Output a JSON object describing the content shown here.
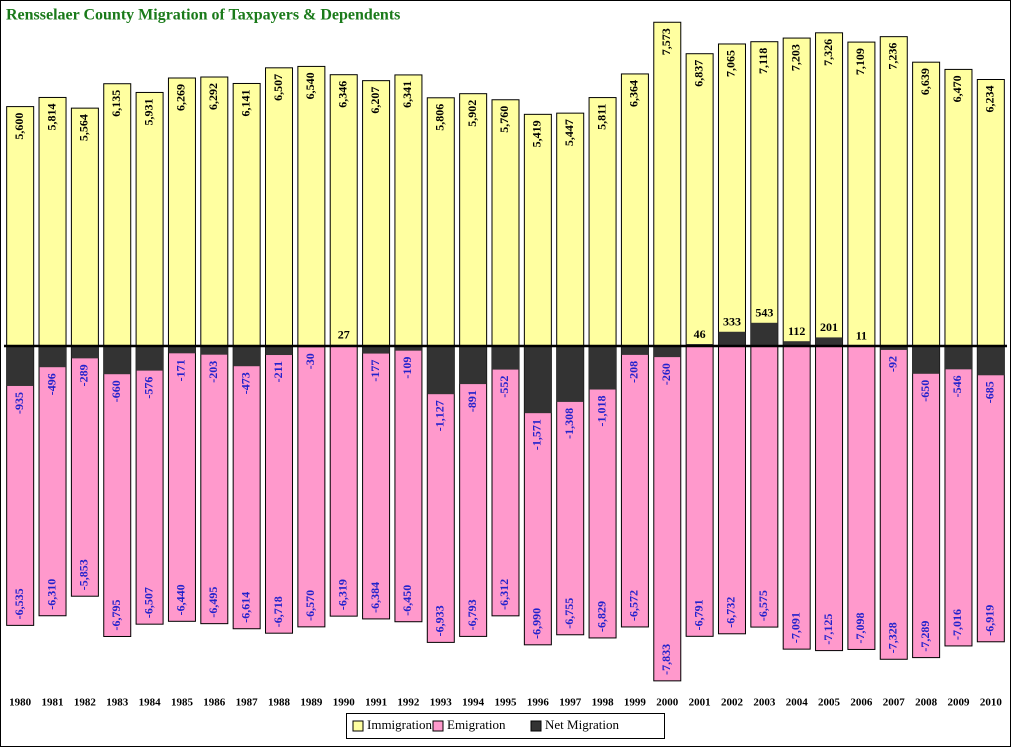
{
  "chart_data": {
    "type": "bar",
    "title": "Rensselaer County Migration of Taxpayers & Dependents",
    "categories": [
      "1980",
      "1981",
      "1982",
      "1983",
      "1984",
      "1985",
      "1986",
      "1987",
      "1988",
      "1989",
      "1990",
      "1991",
      "1992",
      "1993",
      "1994",
      "1995",
      "1996",
      "1997",
      "1998",
      "1999",
      "2000",
      "2001",
      "2002",
      "2003",
      "2004",
      "2005",
      "2006",
      "2007",
      "2008",
      "2009",
      "2010"
    ],
    "series": [
      {
        "name": "Immigration",
        "color": "#ffffa0",
        "values": [
          5600,
          5814,
          5564,
          6135,
          5931,
          6269,
          6292,
          6141,
          6507,
          6540,
          6346,
          6207,
          6341,
          5806,
          5902,
          5760,
          5419,
          5447,
          5811,
          6364,
          7573,
          6837,
          7065,
          7118,
          7203,
          7326,
          7109,
          7236,
          6639,
          6470,
          6234
        ],
        "value_labels": [
          "5,600",
          "5,814",
          "5,564",
          "6,135",
          "5,931",
          "6,269",
          "6,292",
          "6,141",
          "6,507",
          "6,540",
          "6,346",
          "6,207",
          "6,341",
          "5,806",
          "5,902",
          "5,760",
          "5,419",
          "5,447",
          "5,811",
          "6,364",
          "7,573",
          "6,837",
          "7,065",
          "7,118",
          "7,203",
          "7,326",
          "7,109",
          "7,236",
          "6,639",
          "6,470",
          "6,234"
        ]
      },
      {
        "name": "Emigration",
        "color": "#ff99cc",
        "values": [
          -6535,
          -6310,
          -5853,
          -6795,
          -6507,
          -6440,
          -6495,
          -6614,
          -6718,
          -6570,
          -6319,
          -6384,
          -6450,
          -6933,
          -6793,
          -6312,
          -6990,
          -6755,
          -6829,
          -6572,
          -7833,
          -6791,
          -6732,
          -6575,
          -7091,
          -7125,
          -7098,
          -7328,
          -7289,
          -7016,
          -6919
        ],
        "value_labels": [
          "-6,535",
          "-6,310",
          "-5,853",
          "-6,795",
          "-6,507",
          "-6,440",
          "-6,495",
          "-6,614",
          "-6,718",
          "-6,570",
          "-6,319",
          "-6,384",
          "-6,450",
          "-6,933",
          "-6,793",
          "-6,312",
          "-6,990",
          "-6,755",
          "-6,829",
          "-6,572",
          "-7,833",
          "-6,791",
          "-6,732",
          "-6,575",
          "-7,091",
          "-7,125",
          "-7,098",
          "-7,328",
          "-7,289",
          "-7,016",
          "-6,919"
        ]
      },
      {
        "name": "Net Migration",
        "color": "#333333",
        "values": [
          -935,
          -496,
          -289,
          -660,
          -576,
          -171,
          -203,
          -473,
          -211,
          -30,
          27,
          -177,
          -109,
          -1127,
          -891,
          -552,
          -1571,
          -1308,
          -1018,
          -208,
          -260,
          46,
          333,
          543,
          112,
          201,
          11,
          -92,
          -650,
          -546,
          -685
        ],
        "value_labels": [
          "-935",
          "-496",
          "-289",
          "-660",
          "-576",
          "-171",
          "-203",
          "-473",
          "-211",
          "-30",
          "27",
          "-177",
          "-109",
          "-1,127",
          "-891",
          "-552",
          "-1,571",
          "-1,308",
          "-1,018",
          "-208",
          "-260",
          "46",
          "333",
          "543",
          "112",
          "201",
          "11",
          "-92",
          "-650",
          "-546",
          "-685"
        ]
      }
    ],
    "ylim": [
      -8000,
      8000
    ],
    "legend": "bottom"
  }
}
